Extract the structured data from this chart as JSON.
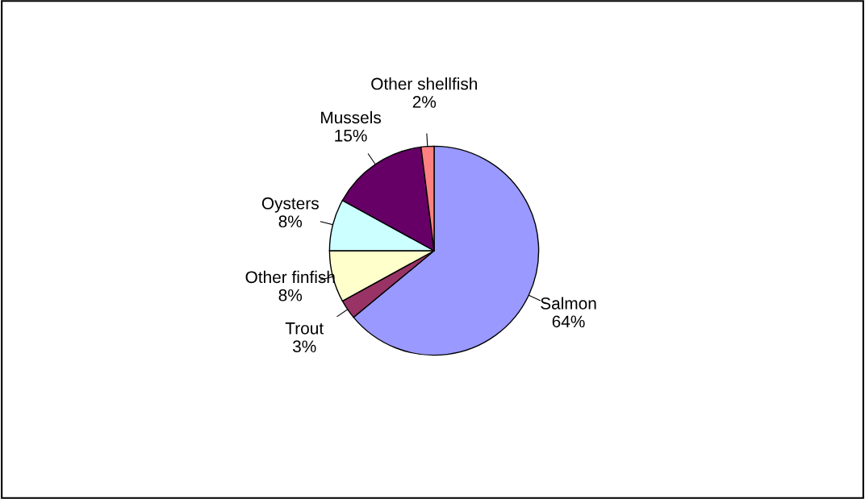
{
  "chart_data": {
    "type": "pie",
    "categories": [
      "Salmon",
      "Trout",
      "Other finfish",
      "Oysters",
      "Mussels",
      "Other shellfish"
    ],
    "values": [
      64,
      3,
      8,
      8,
      15,
      2
    ],
    "colors": [
      "#9999ff",
      "#993366",
      "#ffffcc",
      "#ccffff",
      "#660066",
      "#ff8080"
    ],
    "value_labels": [
      "64%",
      "3%",
      "8%",
      "8%",
      "15%",
      "2%"
    ]
  }
}
